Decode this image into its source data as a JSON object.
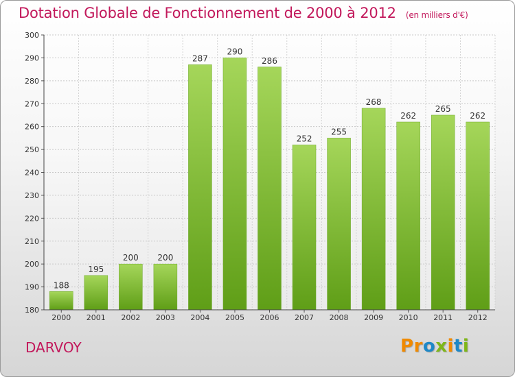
{
  "header": {
    "title": "Dotation Globale de Fonctionnement de 2000 à 2012",
    "units": "(en milliers d'€)"
  },
  "footer": {
    "commune": "DARVOY",
    "logo": [
      "P",
      "r",
      "o",
      "x",
      "i",
      "t",
      "i"
    ]
  },
  "colors": {
    "title": "#c2185b",
    "bar_top": "#a5d65a",
    "bar_bottom": "#5f9e17",
    "logo": [
      "#f08a00",
      "#f08a00",
      "#1e88c7",
      "#7fb719",
      "#f08a00",
      "#1e88c7",
      "#7fb719"
    ]
  },
  "chart_data": {
    "type": "bar",
    "categories": [
      "2000",
      "2001",
      "2002",
      "2003",
      "2004",
      "2005",
      "2006",
      "2007",
      "2008",
      "2009",
      "2010",
      "2011",
      "2012"
    ],
    "values": [
      188,
      195,
      200,
      200,
      287,
      290,
      286,
      252,
      255,
      268,
      262,
      265,
      262
    ],
    "ylim": [
      180,
      300
    ],
    "yticks": [
      180,
      190,
      200,
      210,
      220,
      230,
      240,
      250,
      260,
      270,
      280,
      290,
      300
    ],
    "grid": true,
    "value_labels": true
  }
}
